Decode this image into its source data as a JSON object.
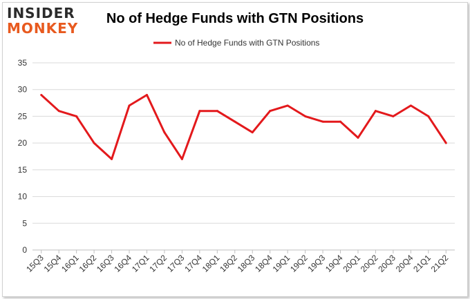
{
  "logo": {
    "line1": "INSIDER",
    "line2": "MONKEY"
  },
  "chart_data": {
    "type": "line",
    "title": "No of Hedge Funds with GTN Positions",
    "xlabel": "",
    "ylabel": "",
    "categories": [
      "15Q3",
      "15Q4",
      "16Q1",
      "16Q2",
      "16Q3",
      "16Q4",
      "17Q1",
      "17Q2",
      "17Q3",
      "17Q4",
      "18Q1",
      "18Q2",
      "18Q3",
      "18Q4",
      "19Q1",
      "19Q2",
      "19Q3",
      "19Q4",
      "20Q1",
      "20Q2",
      "20Q3",
      "20Q4",
      "21Q1",
      "21Q2"
    ],
    "series": [
      {
        "name": "No of Hedge Funds with GTN Positions",
        "values": [
          29,
          26,
          25,
          20,
          17,
          27,
          29,
          22,
          17,
          26,
          26,
          24,
          22,
          26,
          27,
          25,
          24,
          24,
          21,
          26,
          25,
          27,
          25,
          20
        ],
        "color": "#e3191c"
      }
    ],
    "ylim": [
      0,
      35
    ],
    "yticks": [
      0,
      5,
      10,
      15,
      20,
      25,
      30,
      35
    ],
    "grid": true,
    "legend_position": "top"
  }
}
